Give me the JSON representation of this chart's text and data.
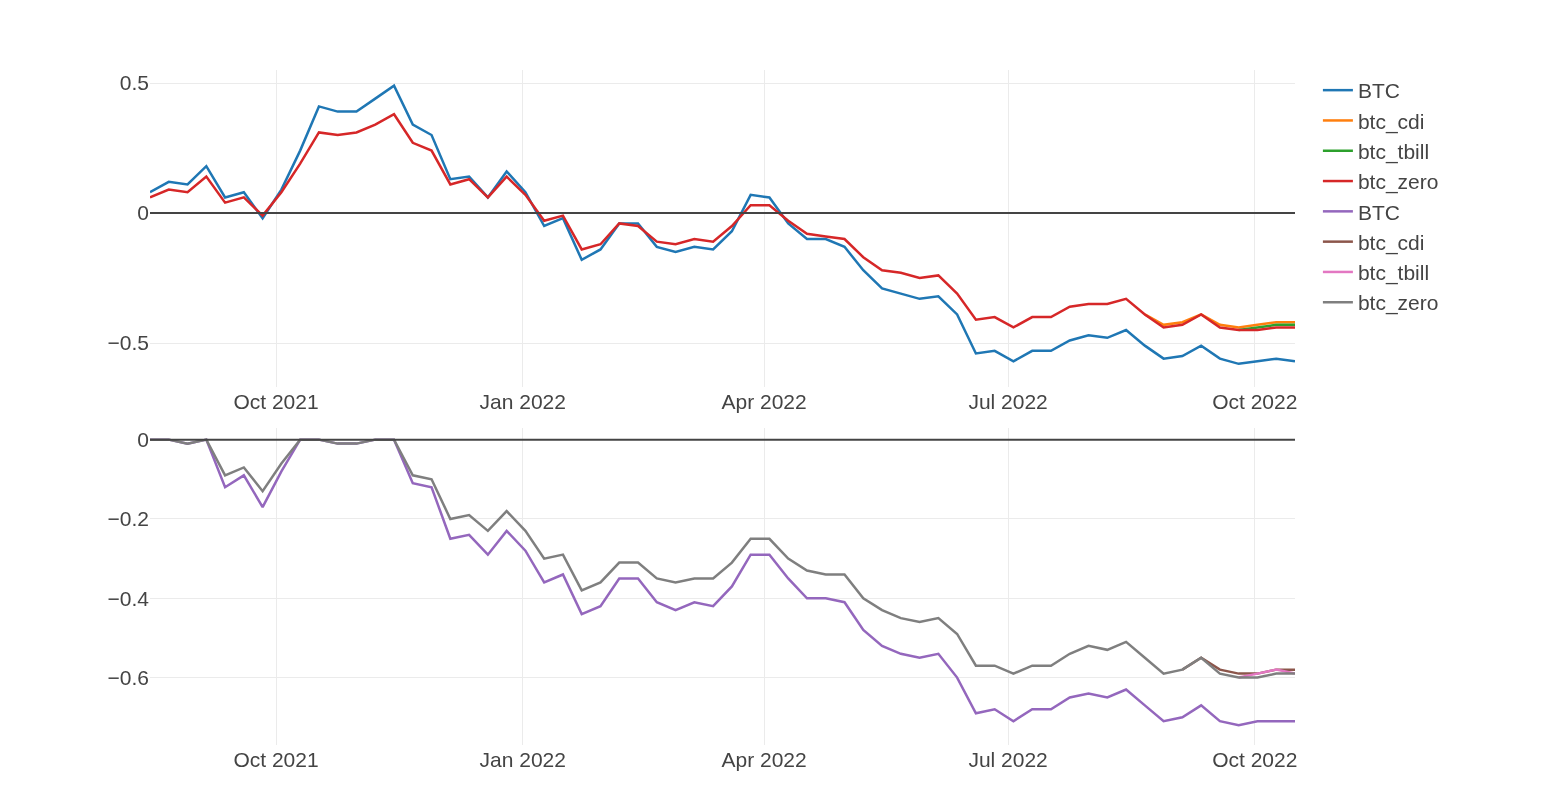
{
  "chart_data": [
    {
      "type": "line",
      "x": [
        "2021-08-15",
        "2021-08-22",
        "2021-08-29",
        "2021-09-05",
        "2021-09-12",
        "2021-09-19",
        "2021-09-26",
        "2021-10-03",
        "2021-10-10",
        "2021-10-17",
        "2021-10-24",
        "2021-10-31",
        "2021-11-07",
        "2021-11-14",
        "2021-11-21",
        "2021-11-28",
        "2021-12-05",
        "2021-12-12",
        "2021-12-19",
        "2021-12-26",
        "2022-01-02",
        "2022-01-09",
        "2022-01-16",
        "2022-01-23",
        "2022-01-30",
        "2022-02-06",
        "2022-02-13",
        "2022-02-20",
        "2022-02-27",
        "2022-03-06",
        "2022-03-13",
        "2022-03-20",
        "2022-03-27",
        "2022-04-03",
        "2022-04-10",
        "2022-04-17",
        "2022-04-24",
        "2022-05-01",
        "2022-05-08",
        "2022-05-15",
        "2022-05-22",
        "2022-05-29",
        "2022-06-05",
        "2022-06-12",
        "2022-06-19",
        "2022-06-26",
        "2022-07-03",
        "2022-07-10",
        "2022-07-17",
        "2022-07-24",
        "2022-07-31",
        "2022-08-07",
        "2022-08-14",
        "2022-08-21",
        "2022-08-28",
        "2022-09-04",
        "2022-09-11",
        "2022-09-18",
        "2022-09-25",
        "2022-10-02",
        "2022-10-09",
        "2022-10-16"
      ],
      "xlim": [
        "2021-08-15",
        "2022-10-16"
      ],
      "xticks": [
        {
          "value": "2021-10-01",
          "label": "Oct 2021"
        },
        {
          "value": "2022-01-01",
          "label": "Jan 2022"
        },
        {
          "value": "2022-04-01",
          "label": "Apr 2022"
        },
        {
          "value": "2022-07-01",
          "label": "Jul 2022"
        },
        {
          "value": "2022-10-01",
          "label": "Oct 2022"
        }
      ],
      "ylim": [
        -0.67,
        0.55
      ],
      "yticks": [
        {
          "value": -0.5,
          "label": "−0.5"
        },
        0,
        0.5
      ],
      "grid": true,
      "legend": "top right",
      "ref_lines": [
        {
          "axis": "y",
          "value": 0,
          "color": "#444444"
        }
      ],
      "series": [
        {
          "name": "BTC",
          "color": "#1f77b4",
          "values": [
            0.08,
            0.12,
            0.11,
            0.18,
            0.06,
            0.08,
            -0.02,
            0.09,
            0.24,
            0.41,
            0.39,
            0.39,
            0.44,
            0.49,
            0.34,
            0.3,
            0.13,
            0.14,
            0.06,
            0.16,
            0.08,
            -0.05,
            -0.02,
            -0.18,
            -0.14,
            -0.04,
            -0.04,
            -0.13,
            -0.15,
            -0.13,
            -0.14,
            -0.07,
            0.07,
            0.06,
            -0.04,
            -0.1,
            -0.1,
            -0.13,
            -0.22,
            -0.29,
            -0.31,
            -0.33,
            -0.32,
            -0.39,
            -0.54,
            -0.53,
            -0.57,
            -0.53,
            -0.53,
            -0.49,
            -0.47,
            -0.48,
            -0.45,
            -0.51,
            -0.56,
            -0.55,
            -0.51,
            -0.56,
            -0.58,
            -0.57,
            -0.56,
            -0.57
          ]
        },
        {
          "name": "btc_cdi",
          "color": "#ff7f0e",
          "values": [
            null,
            null,
            null,
            null,
            null,
            null,
            null,
            null,
            null,
            null,
            null,
            null,
            null,
            null,
            null,
            null,
            null,
            null,
            null,
            null,
            null,
            null,
            null,
            null,
            null,
            null,
            null,
            null,
            null,
            null,
            null,
            null,
            null,
            null,
            null,
            null,
            null,
            null,
            null,
            null,
            null,
            null,
            null,
            null,
            null,
            null,
            null,
            null,
            null,
            null,
            null,
            null,
            null,
            -0.39,
            -0.43,
            -0.42,
            -0.39,
            -0.43,
            -0.44,
            -0.43,
            -0.42,
            -0.42
          ]
        },
        {
          "name": "btc_tbill",
          "color": "#2ca02c",
          "values": [
            null,
            null,
            null,
            null,
            null,
            null,
            null,
            null,
            null,
            null,
            null,
            null,
            null,
            null,
            null,
            null,
            null,
            null,
            null,
            null,
            null,
            null,
            null,
            null,
            null,
            null,
            null,
            null,
            null,
            null,
            null,
            null,
            null,
            null,
            null,
            null,
            null,
            null,
            null,
            null,
            null,
            null,
            null,
            null,
            null,
            null,
            null,
            null,
            null,
            null,
            null,
            null,
            null,
            null,
            null,
            null,
            null,
            null,
            -0.45,
            -0.44,
            -0.43,
            -0.43
          ]
        },
        {
          "name": "btc_zero",
          "color": "#d62728",
          "values": [
            0.06,
            0.09,
            0.08,
            0.14,
            0.04,
            0.06,
            -0.01,
            0.08,
            0.19,
            0.31,
            0.3,
            0.31,
            0.34,
            0.38,
            0.27,
            0.24,
            0.11,
            0.13,
            0.06,
            0.14,
            0.07,
            -0.03,
            -0.01,
            -0.14,
            -0.12,
            -0.04,
            -0.05,
            -0.11,
            -0.12,
            -0.1,
            -0.11,
            -0.05,
            0.03,
            0.03,
            -0.03,
            -0.08,
            -0.09,
            -0.1,
            -0.17,
            -0.22,
            -0.23,
            -0.25,
            -0.24,
            -0.31,
            -0.41,
            -0.4,
            -0.44,
            -0.4,
            -0.4,
            -0.36,
            -0.35,
            -0.35,
            -0.33,
            -0.39,
            -0.44,
            -0.43,
            -0.39,
            -0.44,
            -0.45,
            -0.45,
            -0.44,
            -0.44
          ]
        }
      ]
    },
    {
      "type": "line",
      "x": [
        "2021-08-15",
        "2021-08-22",
        "2021-08-29",
        "2021-09-05",
        "2021-09-12",
        "2021-09-19",
        "2021-09-26",
        "2021-10-03",
        "2021-10-10",
        "2021-10-17",
        "2021-10-24",
        "2021-10-31",
        "2021-11-07",
        "2021-11-14",
        "2021-11-21",
        "2021-11-28",
        "2021-12-05",
        "2021-12-12",
        "2021-12-19",
        "2021-12-26",
        "2022-01-02",
        "2022-01-09",
        "2022-01-16",
        "2022-01-23",
        "2022-01-30",
        "2022-02-06",
        "2022-02-13",
        "2022-02-20",
        "2022-02-27",
        "2022-03-06",
        "2022-03-13",
        "2022-03-20",
        "2022-03-27",
        "2022-04-03",
        "2022-04-10",
        "2022-04-17",
        "2022-04-24",
        "2022-05-01",
        "2022-05-08",
        "2022-05-15",
        "2022-05-22",
        "2022-05-29",
        "2022-06-05",
        "2022-06-12",
        "2022-06-19",
        "2022-06-26",
        "2022-07-03",
        "2022-07-10",
        "2022-07-17",
        "2022-07-24",
        "2022-07-31",
        "2022-08-07",
        "2022-08-14",
        "2022-08-21",
        "2022-08-28",
        "2022-09-04",
        "2022-09-11",
        "2022-09-18",
        "2022-09-25",
        "2022-10-02",
        "2022-10-09",
        "2022-10-16"
      ],
      "xlim": [
        "2021-08-15",
        "2022-10-16"
      ],
      "xticks": [
        {
          "value": "2021-10-01",
          "label": "Oct 2021"
        },
        {
          "value": "2022-01-01",
          "label": "Jan 2022"
        },
        {
          "value": "2022-04-01",
          "label": "Apr 2022"
        },
        {
          "value": "2022-07-01",
          "label": "Jul 2022"
        },
        {
          "value": "2022-10-01",
          "label": "Oct 2022"
        }
      ],
      "ylim": [
        -0.77,
        0.03
      ],
      "yticks": [
        {
          "value": -0.6,
          "label": "−0.6"
        },
        {
          "value": -0.4,
          "label": "−0.4"
        },
        {
          "value": -0.2,
          "label": "−0.2"
        },
        0
      ],
      "grid": true,
      "legend": "top right",
      "ref_lines": [
        {
          "axis": "y",
          "value": 0,
          "color": "#444444"
        }
      ],
      "series": [
        {
          "name": "BTC",
          "color": "#9467bd",
          "values": [
            0,
            0,
            -0.01,
            0,
            -0.12,
            -0.09,
            -0.17,
            -0.08,
            0,
            0,
            -0.01,
            -0.01,
            0,
            0,
            -0.11,
            -0.12,
            -0.25,
            -0.24,
            -0.29,
            -0.23,
            -0.28,
            -0.36,
            -0.34,
            -0.44,
            -0.42,
            -0.35,
            -0.35,
            -0.41,
            -0.43,
            -0.41,
            -0.42,
            -0.37,
            -0.29,
            -0.29,
            -0.35,
            -0.4,
            -0.4,
            -0.41,
            -0.48,
            -0.52,
            -0.54,
            -0.55,
            -0.54,
            -0.6,
            -0.69,
            -0.68,
            -0.71,
            -0.68,
            -0.68,
            -0.65,
            -0.64,
            -0.65,
            -0.63,
            -0.67,
            -0.71,
            -0.7,
            -0.67,
            -0.71,
            -0.72,
            -0.71,
            -0.71,
            -0.71
          ]
        },
        {
          "name": "btc_cdi",
          "color": "#8c564b",
          "values": [
            null,
            null,
            null,
            null,
            null,
            null,
            null,
            null,
            null,
            null,
            null,
            null,
            null,
            null,
            null,
            null,
            null,
            null,
            null,
            null,
            null,
            null,
            null,
            null,
            null,
            null,
            null,
            null,
            null,
            null,
            null,
            null,
            null,
            null,
            null,
            null,
            null,
            null,
            null,
            null,
            null,
            null,
            null,
            null,
            null,
            null,
            null,
            null,
            null,
            null,
            null,
            null,
            null,
            null,
            null,
            -0.58,
            -0.55,
            -0.58,
            -0.59,
            -0.59,
            -0.58,
            -0.58
          ]
        },
        {
          "name": "btc_tbill",
          "color": "#e377c2",
          "values": [
            null,
            null,
            null,
            null,
            null,
            null,
            null,
            null,
            null,
            null,
            null,
            null,
            null,
            null,
            null,
            null,
            null,
            null,
            null,
            null,
            null,
            null,
            null,
            null,
            null,
            null,
            null,
            null,
            null,
            null,
            null,
            null,
            null,
            null,
            null,
            null,
            null,
            null,
            null,
            null,
            null,
            null,
            null,
            null,
            null,
            null,
            null,
            null,
            null,
            null,
            null,
            null,
            null,
            null,
            null,
            null,
            null,
            null,
            -0.6,
            -0.59,
            -0.58,
            -0.59
          ]
        },
        {
          "name": "btc_zero",
          "color": "#7f7f7f",
          "values": [
            0,
            0,
            -0.01,
            0,
            -0.09,
            -0.07,
            -0.13,
            -0.06,
            0,
            0,
            -0.01,
            -0.01,
            0,
            0,
            -0.09,
            -0.1,
            -0.2,
            -0.19,
            -0.23,
            -0.18,
            -0.23,
            -0.3,
            -0.29,
            -0.38,
            -0.36,
            -0.31,
            -0.31,
            -0.35,
            -0.36,
            -0.35,
            -0.35,
            -0.31,
            -0.25,
            -0.25,
            -0.3,
            -0.33,
            -0.34,
            -0.34,
            -0.4,
            -0.43,
            -0.45,
            -0.46,
            -0.45,
            -0.49,
            -0.57,
            -0.57,
            -0.59,
            -0.57,
            -0.57,
            -0.54,
            -0.52,
            -0.53,
            -0.51,
            -0.55,
            -0.59,
            -0.58,
            -0.55,
            -0.59,
            -0.6,
            -0.6,
            -0.59,
            -0.59
          ]
        }
      ]
    }
  ]
}
